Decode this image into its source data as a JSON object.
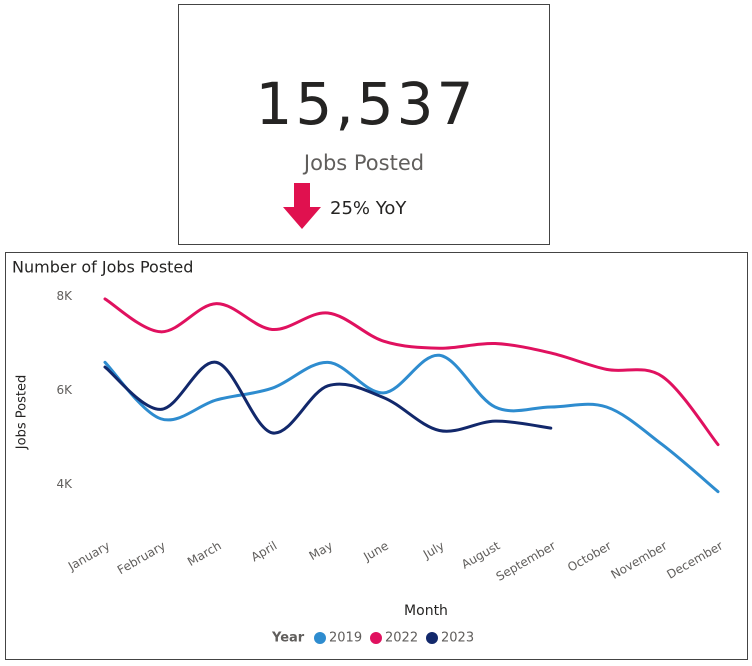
{
  "card": {
    "value": "15,537",
    "label": "Jobs Posted",
    "change": "25% YoY"
  },
  "chart_data": {
    "type": "line",
    "title": "Number of Jobs Posted",
    "x_label": "Month",
    "y_label": "Jobs Posted",
    "legend_title": "Year",
    "categories": [
      "January",
      "February",
      "March",
      "April",
      "May",
      "June",
      "July",
      "August",
      "September",
      "October",
      "November",
      "December"
    ],
    "series": [
      {
        "name": "2019",
        "color": "#2e8ccf",
        "values": [
          6600,
          5400,
          5800,
          6050,
          6600,
          5950,
          6750,
          5650,
          5650,
          5650,
          4850,
          3850
        ]
      },
      {
        "name": "2022",
        "color": "#e0115f",
        "values": [
          7950,
          7250,
          7850,
          7300,
          7650,
          7050,
          6900,
          7000,
          6800,
          6450,
          6300,
          4850
        ]
      },
      {
        "name": "2023",
        "color": "#12286b",
        "values": [
          6500,
          5600,
          6600,
          5100,
          6100,
          5850,
          5150,
          5350,
          5200,
          null,
          null,
          null
        ]
      }
    ],
    "ylim": [
      3750,
      8250
    ],
    "yticks": [
      {
        "value": 4000,
        "label": "4K"
      },
      {
        "value": 6000,
        "label": "6K"
      },
      {
        "value": 8000,
        "label": "8K"
      }
    ],
    "grid": false,
    "legend": "bottom"
  }
}
